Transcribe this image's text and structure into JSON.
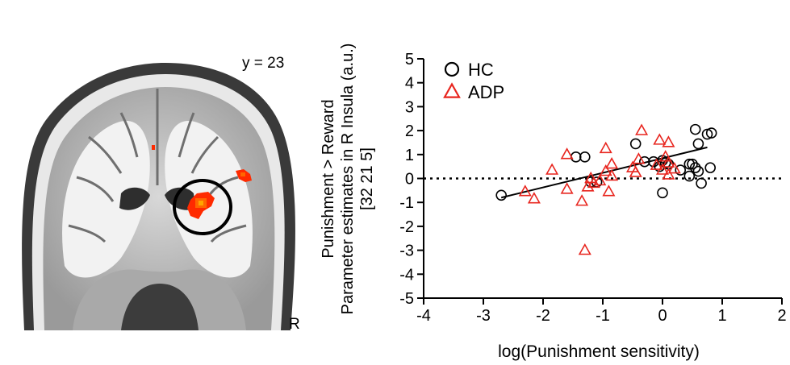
{
  "brain": {
    "slice_label": "y = 23",
    "side_label": "R"
  },
  "chart_data": {
    "type": "scatter",
    "xlabel": "log(Punishment sensitivity)",
    "ylabel_lines": [
      "Punishment > Reward",
      "Parameter estimates in R Insula (a.u.)",
      "[32 21 5]"
    ],
    "xlim": [
      -4,
      2
    ],
    "ylim": [
      -5,
      5
    ],
    "xticks": [
      -4,
      -3,
      -2,
      -1,
      0,
      1,
      2
    ],
    "yticks": [
      -5,
      -4,
      -3,
      -2,
      -1,
      0,
      1,
      2,
      3,
      4,
      5
    ],
    "reference_line": {
      "y": 0,
      "style": "dotted"
    },
    "regression_line": {
      "x": [
        -2.7,
        0.75
      ],
      "y": [
        -0.8,
        1.3
      ]
    },
    "legend_position": "top-left",
    "series": [
      {
        "name": "HC",
        "marker": "circle",
        "color": "#000000",
        "points": [
          [
            -2.7,
            -0.7
          ],
          [
            -1.45,
            0.9
          ],
          [
            -1.3,
            0.9
          ],
          [
            -1.2,
            -0.15
          ],
          [
            -1.1,
            -0.15
          ],
          [
            -0.45,
            1.45
          ],
          [
            -0.3,
            0.7
          ],
          [
            -0.15,
            0.7
          ],
          [
            -0.05,
            0.5
          ],
          [
            0.0,
            0.75
          ],
          [
            0.0,
            -0.6
          ],
          [
            0.05,
            0.65
          ],
          [
            0.1,
            0.6
          ],
          [
            0.3,
            0.35
          ],
          [
            0.45,
            0.6
          ],
          [
            0.45,
            0.1
          ],
          [
            0.5,
            0.6
          ],
          [
            0.55,
            0.45
          ],
          [
            0.55,
            2.05
          ],
          [
            0.6,
            1.45
          ],
          [
            0.6,
            0.3
          ],
          [
            0.65,
            -0.2
          ],
          [
            0.75,
            1.85
          ],
          [
            0.8,
            0.45
          ],
          [
            0.82,
            1.9
          ]
        ]
      },
      {
        "name": "ADP",
        "marker": "triangle",
        "color": "#e8251e",
        "points": [
          [
            -2.3,
            -0.55
          ],
          [
            -2.15,
            -0.85
          ],
          [
            -1.85,
            0.35
          ],
          [
            -1.6,
            1.0
          ],
          [
            -1.6,
            -0.45
          ],
          [
            -1.35,
            -0.95
          ],
          [
            -1.3,
            -3.0
          ],
          [
            -1.25,
            -0.35
          ],
          [
            -1.2,
            0.0
          ],
          [
            -1.15,
            -0.2
          ],
          [
            -1.05,
            -0.1
          ],
          [
            -0.95,
            1.25
          ],
          [
            -0.95,
            0.3
          ],
          [
            -0.9,
            -0.55
          ],
          [
            -0.85,
            0.6
          ],
          [
            -0.85,
            0.1
          ],
          [
            -0.5,
            0.45
          ],
          [
            -0.45,
            0.25
          ],
          [
            -0.4,
            0.8
          ],
          [
            -0.35,
            2.0
          ],
          [
            -0.1,
            0.55
          ],
          [
            -0.05,
            1.6
          ],
          [
            0.0,
            0.35
          ],
          [
            0.05,
            0.9
          ],
          [
            0.1,
            0.65
          ],
          [
            0.1,
            0.15
          ],
          [
            0.1,
            1.5
          ],
          [
            0.2,
            0.4
          ]
        ]
      }
    ]
  }
}
